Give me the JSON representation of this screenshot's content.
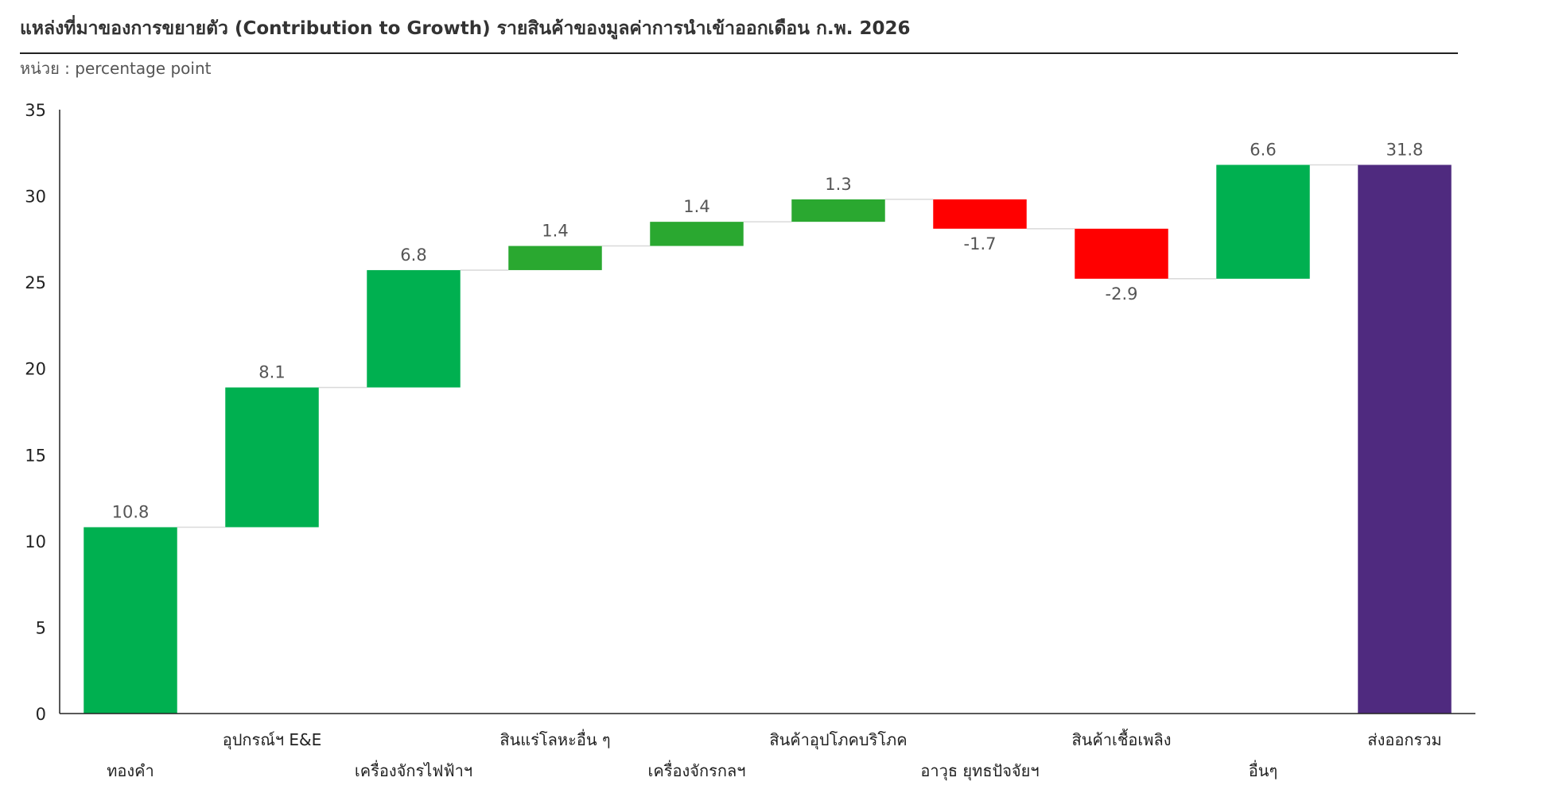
{
  "header": {
    "title": "แหล่งที่มาของการขยายตัว (Contribution to Growth) รายสินค้าของมูลค่าการนำเข้าออกเดือน ก.พ. 2026",
    "unit": "หน่วย : percentage point"
  },
  "colors": {
    "increase": "#00b050",
    "increase_small": "#2aa830",
    "decrease": "#ff0000",
    "total": "#4f2a7f",
    "axis": "#222222",
    "connector": "#d9d9d9"
  },
  "chart_data": {
    "type": "bar",
    "subtype": "waterfall",
    "title": "แหล่งที่มาของการขยายตัว (Contribution to Growth) รายสินค้าของมูลค่าการนำเข้าออกเดือน ก.พ. 2026",
    "ylabel": "",
    "xlabel": "",
    "ylim": [
      0,
      35
    ],
    "yticks": [
      0,
      5,
      10,
      15,
      20,
      25,
      30,
      35
    ],
    "grid": false,
    "categories": [
      "ทองคำ",
      "อุปกรณ์ฯ E&E",
      "เครื่องจักรไฟฟ้าฯ",
      "สินแร่โลหะอื่น ๆ",
      "เครื่องจักรกลฯ",
      "สินค้าอุปโภคบริโภค",
      "อาวุธ ยุทธปัจจัยฯ",
      "สินค้าเชื้อเพลิง",
      "อื่นๆ",
      "ส่งออกรวม"
    ],
    "values": [
      10.8,
      8.1,
      6.8,
      1.4,
      1.4,
      1.3,
      -1.7,
      -2.9,
      6.6,
      31.8
    ],
    "value_labels": [
      "10.8",
      "8.1",
      "6.8",
      "1.4",
      "1.4",
      "1.3",
      "-1.7",
      "-2.9",
      "6.6",
      "31.8"
    ],
    "is_total": [
      false,
      false,
      false,
      false,
      false,
      false,
      false,
      false,
      false,
      true
    ],
    "label_row": [
      2,
      1,
      2,
      1,
      2,
      1,
      2,
      1,
      2,
      1
    ]
  }
}
